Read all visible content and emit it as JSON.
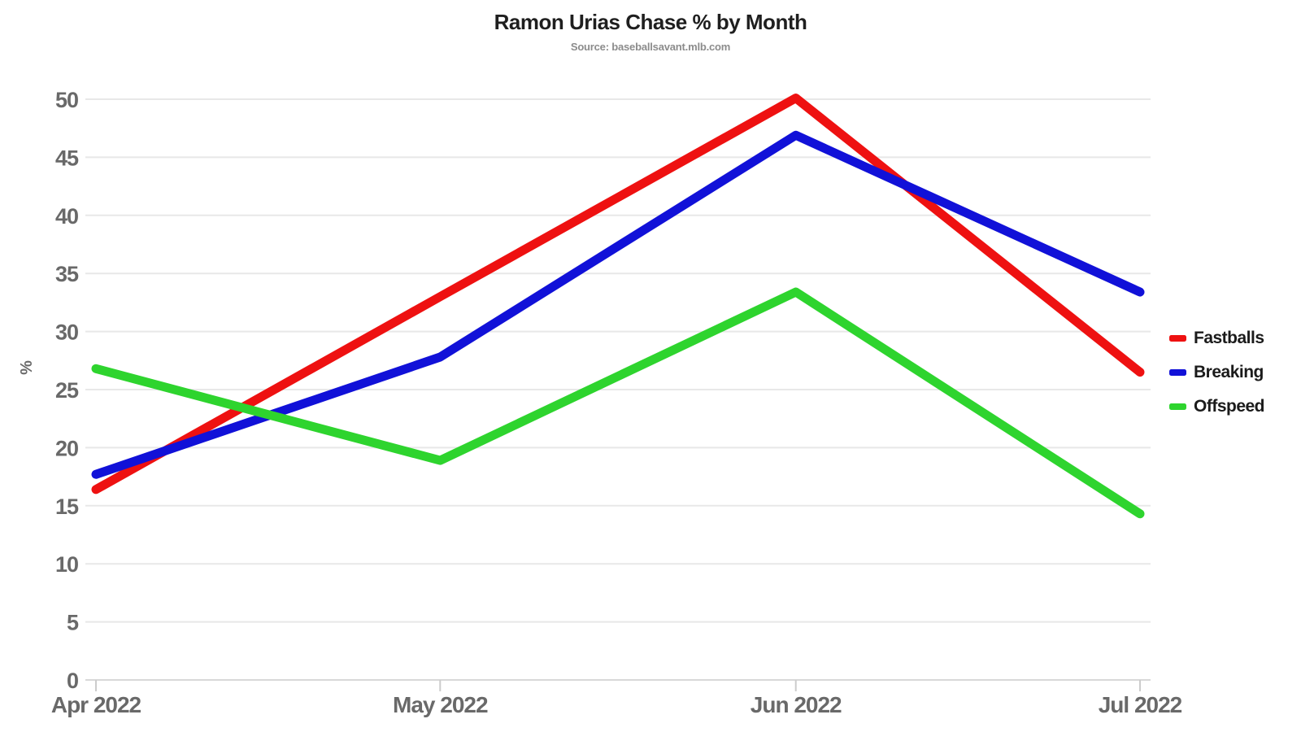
{
  "title": "Ramon Urias Chase % by Month",
  "subtitle": "Source: baseballsavant.mlb.com",
  "chart_data": {
    "type": "line",
    "title": "Ramon Urias Chase % by Month",
    "subtitle": "Source: baseballsavant.mlb.com",
    "categories": [
      "Apr 2022",
      "May 2022",
      "Jun 2022",
      "Jul 2022"
    ],
    "x_day_offsets": [
      0,
      30,
      61,
      91
    ],
    "series": [
      {
        "name": "Fastballs",
        "color": "#ee1111",
        "values": [
          16.4,
          33.0,
          50.1,
          26.5
        ]
      },
      {
        "name": "Breaking",
        "color": "#1111d8",
        "values": [
          17.7,
          27.8,
          46.9,
          33.4
        ]
      },
      {
        "name": "Offspeed",
        "color": "#2ed42e",
        "values": [
          26.8,
          18.9,
          33.4,
          14.3
        ]
      }
    ],
    "xlabel": "",
    "ylabel": "%",
    "ylim": [
      0,
      50
    ],
    "ytick_step": 5,
    "grid": true,
    "legend_position": "right",
    "colors": {
      "tick_label": "#696969",
      "gridline": "#e8e8e8",
      "baseline": "#d8d8d8",
      "tick_mark": "#cccccc",
      "title_text": "#1f1f1f",
      "subtitle_text": "#8c8c8c",
      "legend_text": "#1b1b1b"
    }
  }
}
